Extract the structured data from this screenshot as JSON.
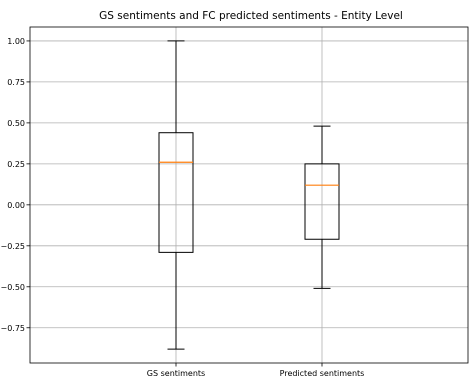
{
  "chart_data": {
    "type": "box",
    "title": "GS sentiments and FC predicted sentiments - Entity Level",
    "xlabel": "",
    "ylabel": "",
    "categories": [
      "GS sentiments",
      "Predicted sentiments"
    ],
    "boxes": [
      {
        "whisker_low": -0.88,
        "q1": -0.29,
        "median": 0.26,
        "q3": 0.44,
        "whisker_high": 1.0
      },
      {
        "whisker_low": -0.51,
        "q1": -0.21,
        "median": 0.12,
        "q3": 0.25,
        "whisker_high": 0.48
      }
    ],
    "ylim": [
      -0.965,
      1.085
    ],
    "yticks": [
      1.0,
      0.75,
      0.5,
      0.25,
      0.0,
      -0.25,
      -0.5,
      -0.75
    ],
    "ytick_labels": [
      "1.00",
      "0.75",
      "0.50",
      "0.25",
      "0.00",
      "−0.25",
      "−0.50",
      "−0.75"
    ],
    "grid": true,
    "colors": {
      "box": "#000000",
      "median": "#ff7f0e",
      "grid": "#b0b0b0"
    }
  }
}
